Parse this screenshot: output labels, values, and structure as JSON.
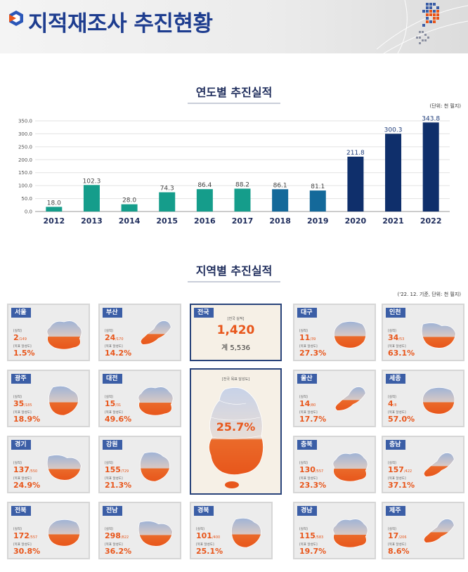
{
  "header": {
    "title": "지적재조사 추진현황"
  },
  "colors": {
    "brand": "#1e3d8f",
    "teal": "#159d8b",
    "navy": "#0f2f6b",
    "orange": "#e8561b"
  },
  "chart_section": {
    "title": "연도별 추진실적",
    "unit": "(단위: 천 필지)"
  },
  "chart_data": {
    "type": "bar",
    "categories": [
      "2012",
      "2013",
      "2014",
      "2015",
      "2016",
      "2017",
      "2018",
      "2019",
      "2020",
      "2021",
      "2022"
    ],
    "values": [
      18.0,
      102.3,
      28.0,
      74.3,
      86.4,
      88.2,
      86.1,
      81.1,
      211.8,
      300.3,
      343.8
    ],
    "value_labels": [
      "18.0",
      "102.3",
      "28.0",
      "74.3",
      "86.4",
      "88.2",
      "86.1",
      "81.1",
      "211.8",
      "300.3",
      "343.8"
    ],
    "yticks": [
      "0.0",
      "50.0",
      "100.0",
      "150.0",
      "200.0",
      "250.0",
      "300.0",
      "350.0"
    ],
    "ylim": [
      0,
      350
    ],
    "grid": true,
    "bar_colors": [
      "#159d8b",
      "#159d8b",
      "#159d8b",
      "#159d8b",
      "#159d8b",
      "#159d8b",
      "#14699a",
      "#14699a",
      "#0f2f6b",
      "#0f2f6b",
      "#0f2f6b"
    ]
  },
  "region_section": {
    "title": "지역별 추진실적",
    "note": "('22. 12. 기준, 단위: 천 필지)"
  },
  "labels": {
    "actual": "[실적]",
    "rate": "[목표 달성도]",
    "nat_actual": "[전국 실적]",
    "nat_rate": "[전국 목표 달성도]"
  },
  "national": {
    "name": "전국",
    "actual": "1,420",
    "total": "계 5,536",
    "rate": "25.7%"
  },
  "regions": [
    {
      "name": "서울",
      "actual": "2",
      "target": "/149",
      "rate": "1.5%"
    },
    {
      "name": "부산",
      "actual": "24",
      "target": "/170",
      "rate": "14.2%"
    },
    {
      "name": "대구",
      "actual": "11",
      "target": "/39",
      "rate": "27.3%"
    },
    {
      "name": "인천",
      "actual": "34",
      "target": "/53",
      "rate": "63.1%"
    },
    {
      "name": "광주",
      "actual": "35",
      "target": "/185",
      "rate": "18.9%"
    },
    {
      "name": "대전",
      "actual": "15",
      "target": "/31",
      "rate": "49.6%"
    },
    {
      "name": "울산",
      "actual": "14",
      "target": "/80",
      "rate": "17.7%"
    },
    {
      "name": "세종",
      "actual": "4",
      "target": "/8",
      "rate": "57.0%"
    },
    {
      "name": "경기",
      "actual": "137",
      "target": "/550",
      "rate": "24.9%"
    },
    {
      "name": "강원",
      "actual": "155",
      "target": "/729",
      "rate": "21.3%"
    },
    {
      "name": "충북",
      "actual": "130",
      "target": "/557",
      "rate": "23.3%"
    },
    {
      "name": "충남",
      "actual": "157",
      "target": "/422",
      "rate": "37.1%"
    },
    {
      "name": "전북",
      "actual": "172",
      "target": "/557",
      "rate": "30.8%"
    },
    {
      "name": "전남",
      "actual": "298",
      "target": "/822",
      "rate": "36.2%"
    },
    {
      "name": "경북",
      "actual": "101",
      "target": "/400",
      "rate": "25.1%"
    },
    {
      "name": "경남",
      "actual": "115",
      "target": "/583",
      "rate": "19.7%"
    },
    {
      "name": "제주",
      "actual": "17",
      "target": "/206",
      "rate": "8.6%"
    }
  ]
}
